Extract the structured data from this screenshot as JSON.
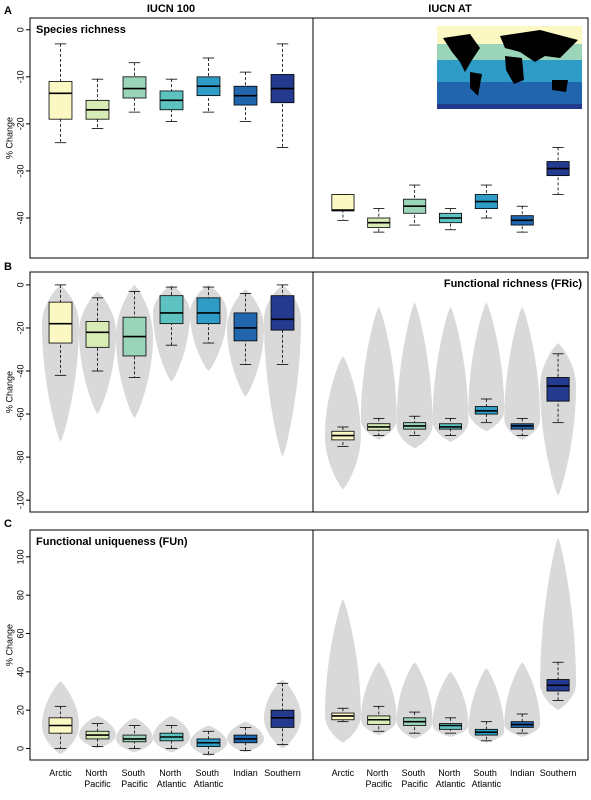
{
  "column_titles": [
    "IUCN 100",
    "IUCN AT"
  ],
  "panel_letters": [
    "A",
    "B",
    "C"
  ],
  "categories": [
    "Arctic",
    "North Pacific",
    "South Pacific",
    "North Atlantic",
    "South Atlantic",
    "Indian",
    "Southern"
  ],
  "colors": [
    "#fbf8c4",
    "#d8edb6",
    "#9ad4b9",
    "#5ec2c1",
    "#2e9cc6",
    "#2166ad",
    "#243a8e"
  ],
  "chart_data": [
    {
      "type": "box",
      "title": "Species richness",
      "ylabel": "% Change",
      "ylim": [
        -48.5,
        2.5
      ],
      "yticks": [
        0,
        -10,
        -20,
        -30,
        -40
      ],
      "q3": [
        -11,
        -15,
        -10,
        -13,
        -10,
        -12,
        -9.5
      ],
      "median": [
        -13.5,
        -17,
        -12.5,
        -15,
        -12,
        -14,
        -12.5
      ],
      "q1": [
        -19,
        -19,
        -14.5,
        -17,
        -14,
        -16,
        -15.5
      ],
      "whisker_high": [
        -3,
        -10.5,
        -7,
        -10.5,
        -6,
        -9,
        -3
      ],
      "whisker_low": [
        -24,
        -21,
        -17.5,
        -19.5,
        -17.5,
        -19.5,
        -25
      ]
    },
    {
      "type": "box",
      "ylim": [
        -48.5,
        2.5
      ],
      "q3": [
        -35,
        -40,
        -36,
        -39,
        -35,
        -39.5,
        -28
      ],
      "median": [
        -38.3,
        -41,
        -37.5,
        -40,
        -36.5,
        -40.5,
        -29.5
      ],
      "q1": [
        -38.5,
        -42,
        -39,
        -41,
        -38,
        -41.5,
        -31
      ],
      "whisker_high": [
        -35,
        -38,
        -33,
        -38,
        -33,
        -37.5,
        -25
      ],
      "whisker_low": [
        -40.5,
        -43,
        -41.5,
        -42.5,
        -40,
        -43,
        -35
      ]
    },
    {
      "type": "violin_box",
      "ylabel": "% Change",
      "ylim": [
        -105.5,
        6
      ],
      "yticks": [
        0,
        -20,
        -40,
        -60,
        -80,
        -100
      ],
      "violin_high": [
        0,
        -3,
        0,
        0,
        0,
        -2,
        0
      ],
      "violin_low": [
        -73,
        -60,
        -62,
        -45,
        -40,
        -52,
        -80
      ],
      "q3": [
        -8,
        -17,
        -15,
        -5,
        -6,
        -13,
        -5
      ],
      "median": [
        -18,
        -22,
        -24,
        -13,
        -13,
        -20,
        -16
      ],
      "q1": [
        -27,
        -29,
        -33,
        -18,
        -18,
        -26,
        -21
      ],
      "whisker_high": [
        0,
        -6,
        -3,
        -1,
        -1,
        -4,
        0
      ],
      "whisker_low": [
        -42,
        -40,
        -43,
        -28,
        -27,
        -37,
        -37
      ]
    },
    {
      "type": "violin_box",
      "title": "Functional richness (FRic)",
      "ylim": [
        -105.5,
        6
      ],
      "violin_high": [
        -33,
        -10,
        -8,
        -10,
        -8,
        -10,
        -27
      ],
      "violin_low": [
        -95,
        -72,
        -76,
        -73,
        -68,
        -72,
        -98
      ],
      "q3": [
        -68,
        -64.5,
        -64,
        -64.5,
        -56.5,
        -64.5,
        -43
      ],
      "median": [
        -70,
        -66,
        -65.5,
        -66,
        -58.5,
        -65.5,
        -47
      ],
      "q1": [
        -72,
        -67.5,
        -67,
        -67,
        -60,
        -67,
        -54
      ],
      "whisker_high": [
        -66,
        -62,
        -61,
        -62,
        -53,
        -62,
        -32
      ],
      "whisker_low": [
        -75,
        -70,
        -70,
        -70,
        -64,
        -70,
        -64
      ]
    },
    {
      "type": "violin_box",
      "title": "Functional uniqueness (FUn)",
      "ylabel": "% Change",
      "ylim": [
        -6,
        114
      ],
      "yticks": [
        0,
        20,
        40,
        60,
        80,
        100
      ],
      "violin_high": [
        35,
        17,
        16,
        17,
        12,
        14,
        36
      ],
      "violin_low": [
        -3,
        0,
        -2,
        -2,
        -4,
        -2,
        0
      ],
      "q3": [
        16,
        9,
        7,
        8,
        5,
        7,
        20
      ],
      "median": [
        12,
        7,
        5,
        6,
        3,
        5,
        16
      ],
      "q1": [
        8,
        5,
        3.5,
        4,
        1,
        3,
        11
      ],
      "whisker_high": [
        22,
        13,
        12,
        12,
        9,
        11,
        34
      ],
      "whisker_low": [
        0,
        1,
        0,
        0,
        -3,
        -1,
        2
      ]
    },
    {
      "type": "violin_box",
      "ylim": [
        -6,
        114
      ],
      "violin_high": [
        78,
        45,
        45,
        40,
        42,
        45,
        110
      ],
      "violin_low": [
        3,
        7,
        5,
        6,
        3,
        6,
        20
      ],
      "q3": [
        18.5,
        17,
        16,
        13,
        10,
        14,
        36
      ],
      "median": [
        17,
        15,
        14,
        12,
        8.5,
        12.5,
        33
      ],
      "q1": [
        15,
        12.5,
        12,
        10,
        7,
        11,
        30
      ],
      "whisker_high": [
        21,
        22,
        19,
        16,
        14,
        18,
        45
      ],
      "whisker_low": [
        14,
        9,
        8,
        8,
        4,
        8,
        25
      ]
    }
  ]
}
